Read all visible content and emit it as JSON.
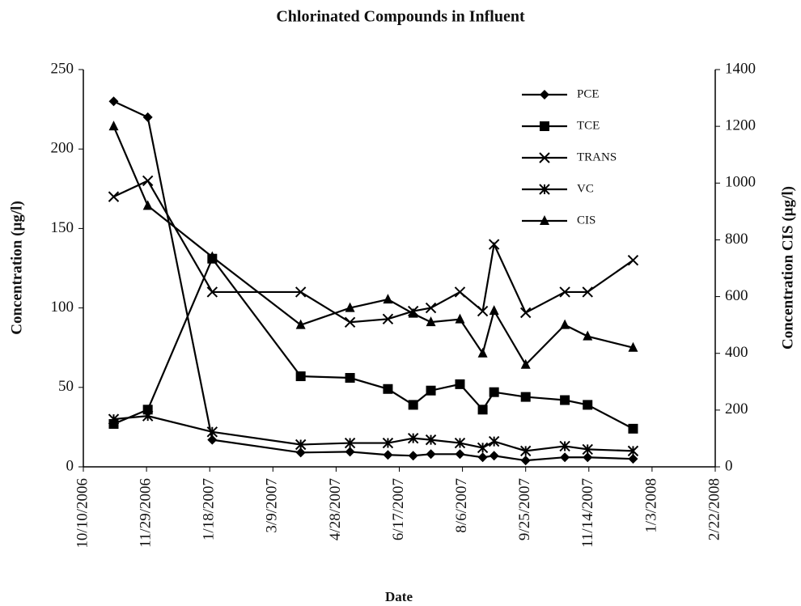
{
  "chart_data": {
    "type": "line",
    "title": "Chlorinated Compounds in Influent",
    "x_label": "Date",
    "y_label": "Concentration (µg/l)",
    "y2_label": "Concentration CIS (µg/l)",
    "x": [
      "2006-11-03",
      "2006-11-30",
      "2007-01-20",
      "2007-03-31",
      "2007-05-09",
      "2007-06-08",
      "2007-06-28",
      "2007-07-12",
      "2007-08-04",
      "2007-08-22",
      "2007-08-31",
      "2007-09-25",
      "2007-10-26",
      "2007-11-13",
      "2007-12-19"
    ],
    "xlim": [
      "2006-10-10",
      "2008-02-22"
    ],
    "xticks": [
      {
        "value": "2006-10-10",
        "label": "10/10/2006"
      },
      {
        "value": "2006-11-29",
        "label": "11/29/2006"
      },
      {
        "value": "2007-01-18",
        "label": "1/18/2007"
      },
      {
        "value": "2007-03-09",
        "label": "3/9/2007"
      },
      {
        "value": "2007-04-28",
        "label": "4/28/2007"
      },
      {
        "value": "2007-06-17",
        "label": "6/17/2007"
      },
      {
        "value": "2007-08-06",
        "label": "8/6/2007"
      },
      {
        "value": "2007-09-25",
        "label": "9/25/2007"
      },
      {
        "value": "2007-11-14",
        "label": "11/14/2007"
      },
      {
        "value": "2008-01-03",
        "label": "1/3/2008"
      },
      {
        "value": "2008-02-22",
        "label": "2/22/2008"
      }
    ],
    "ylim": [
      0,
      250
    ],
    "yticks": [
      0,
      50,
      100,
      150,
      200,
      250
    ],
    "y2lim": [
      0,
      1400
    ],
    "y2ticks": [
      0,
      200,
      400,
      600,
      800,
      1000,
      1200,
      1400
    ],
    "grid": false,
    "legend": "upper right",
    "series": [
      {
        "name": "PCE",
        "color": "#000000",
        "marker": "diamond",
        "values": [
          230,
          220,
          17,
          9,
          9.5,
          7.5,
          7,
          8,
          8,
          6,
          7,
          4,
          6,
          6,
          5
        ]
      },
      {
        "name": "TCE",
        "color": "#000000",
        "marker": "square",
        "values": [
          27,
          36,
          131,
          57,
          56,
          49,
          39,
          48,
          52,
          36,
          47,
          44,
          42,
          39,
          24
        ]
      },
      {
        "name": "TRANS",
        "color": "#000000",
        "marker": "x",
        "values": [
          170,
          180,
          110,
          110,
          91,
          93,
          98,
          100,
          110,
          98,
          140,
          97,
          110,
          110,
          130
        ]
      },
      {
        "name": "VC",
        "color": "#000000",
        "marker": "asterisk",
        "values": [
          30,
          32,
          22,
          14,
          15,
          15,
          18,
          17,
          15,
          12,
          16,
          10,
          13,
          11,
          10
        ]
      },
      {
        "name": "CIS",
        "color": "#000000",
        "marker": "triangle",
        "axis": "y2",
        "values": [
          1200,
          920,
          740,
          500,
          560,
          590,
          540,
          510,
          520,
          400,
          550,
          360,
          500,
          460,
          420
        ]
      }
    ]
  }
}
